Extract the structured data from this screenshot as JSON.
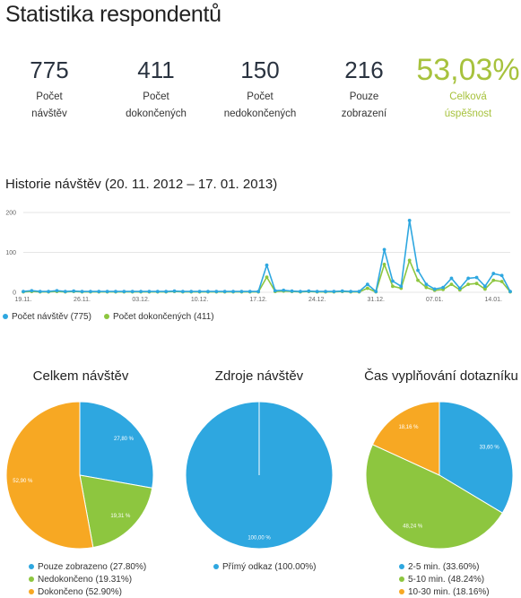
{
  "page_title": "Statistika respondentů",
  "stats": [
    {
      "value": "775",
      "label_line1": "Počet",
      "label_line2": "návštěv"
    },
    {
      "value": "411",
      "label_line1": "Počet",
      "label_line2": "dokončených"
    },
    {
      "value": "150",
      "label_line1": "Počet",
      "label_line2": "nedokončených"
    },
    {
      "value": "216",
      "label_line1": "Pouze",
      "label_line2": "zobrazení"
    },
    {
      "value": "53,03%",
      "label_line1": "Celková",
      "label_line2": "úspěšnost"
    }
  ],
  "colors": {
    "blue": "#2ea7e0",
    "green": "#8dc63f",
    "orange": "#f7a823",
    "highlight": "#a7c23d",
    "grid": "#e6e6e6"
  },
  "chart_data": [
    {
      "type": "line",
      "title": "Historie návštěv (20. 11. 2012 – 17. 01. 2013)",
      "x_labels": [
        "19.11.",
        "26.11.",
        "03.12.",
        "10.12.",
        "17.12.",
        "24.12.",
        "31.12.",
        "07.01.",
        "14.01."
      ],
      "x_label_positions": [
        0,
        7,
        14,
        21,
        28,
        35,
        42,
        49,
        56
      ],
      "y_ticks": [
        "0",
        "100",
        "200"
      ],
      "ylim": [
        0,
        200
      ],
      "grid": true,
      "legend_position": "bottom-left",
      "series": [
        {
          "name": "Počet návštěv (775)",
          "color": "#2ea7e0",
          "values": [
            2,
            4,
            2,
            2,
            4,
            2,
            3,
            2,
            2,
            2,
            2,
            2,
            2,
            2,
            2,
            2,
            2,
            2,
            3,
            2,
            2,
            2,
            2,
            2,
            2,
            2,
            2,
            2,
            2,
            68,
            4,
            5,
            3,
            2,
            3,
            2,
            2,
            2,
            3,
            2,
            2,
            20,
            2,
            107,
            28,
            15,
            180,
            55,
            20,
            8,
            12,
            35,
            10,
            35,
            37,
            15,
            47,
            42,
            2
          ]
        },
        {
          "name": "Počet dokončených (411)",
          "color": "#8dc63f",
          "values": [
            1,
            2,
            1,
            1,
            2,
            1,
            2,
            1,
            1,
            1,
            1,
            1,
            1,
            1,
            1,
            1,
            1,
            1,
            2,
            1,
            1,
            1,
            1,
            1,
            1,
            1,
            1,
            1,
            1,
            38,
            2,
            3,
            2,
            1,
            2,
            1,
            1,
            1,
            2,
            1,
            1,
            10,
            1,
            70,
            15,
            10,
            80,
            30,
            12,
            5,
            7,
            20,
            6,
            20,
            22,
            8,
            30,
            27,
            1
          ]
        }
      ]
    },
    {
      "type": "pie",
      "title": "Celkem návštěv",
      "slices": [
        {
          "label": "Pouze zobrazeno (27.80%)",
          "value": 27.8,
          "data_label": "27,80 %",
          "color": "#2ea7e0"
        },
        {
          "label": "Nedokončeno (19.31%)",
          "value": 19.31,
          "data_label": "19,31 %",
          "color": "#8dc63f"
        },
        {
          "label": "Dokončeno (52.90%)",
          "value": 52.9,
          "data_label": "52,90 %",
          "color": "#f7a823"
        }
      ]
    },
    {
      "type": "pie",
      "title": "Zdroje návštěv",
      "slices": [
        {
          "label": "Přímý odkaz (100.00%)",
          "value": 100.0,
          "data_label": "100,00 %",
          "color": "#2ea7e0"
        }
      ]
    },
    {
      "type": "pie",
      "title": "Čas vyplňování dotazníku",
      "slices": [
        {
          "label": "2-5 min. (33.60%)",
          "value": 33.6,
          "data_label": "33,60 %",
          "color": "#2ea7e0"
        },
        {
          "label": "5-10 min. (48.24%)",
          "value": 48.24,
          "data_label": "48,24 %",
          "color": "#8dc63f"
        },
        {
          "label": "10-30 min. (18.16%)",
          "value": 18.16,
          "data_label": "18,16 %",
          "color": "#f7a823"
        }
      ]
    }
  ]
}
